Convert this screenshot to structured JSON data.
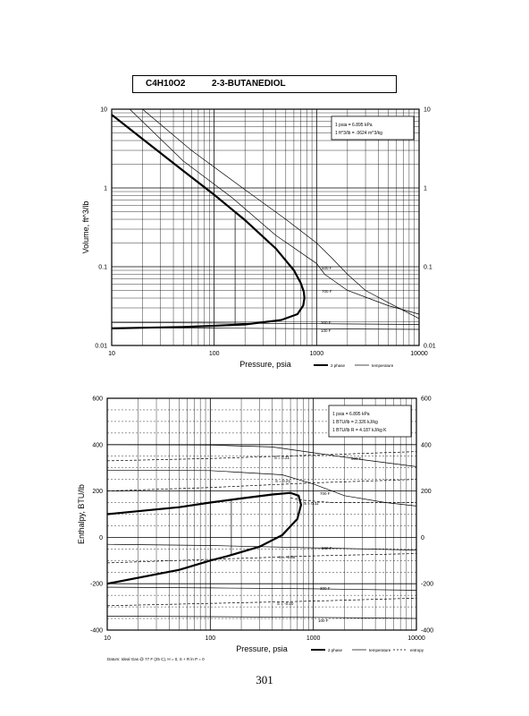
{
  "header": {
    "formula": "C4H10O2",
    "name": "2-3-BUTANEDIOL"
  },
  "page_number": "301",
  "colors": {
    "ink": "#000000",
    "background": "#ffffff"
  },
  "chart_data": [
    {
      "type": "line",
      "xscale": "log",
      "yscale": "log",
      "xlabel": "Pressure,  psia",
      "ylabel": "Volume, ft^3/lb",
      "xlim": [
        10,
        10000
      ],
      "ylim": [
        0.01,
        10
      ],
      "grid": true,
      "xticks": [
        10,
        100,
        1000,
        10000
      ],
      "xtick_labels": [
        "10",
        "100",
        "1000",
        "10000"
      ],
      "yticks": [
        0.01,
        0.1,
        1,
        10
      ],
      "ytick_labels": [
        "0.01",
        "0.1",
        "1",
        "10"
      ],
      "conversion_box": [
        "1 psia  =  6.895 kPa",
        "1 ft^3/lb  =  .0624 m^3/kg"
      ],
      "legend": [
        "2 phase",
        "temperature"
      ],
      "legend_position": "bottom-right",
      "series": [
        {
          "name": "2 phase",
          "role": "saturation",
          "x": [
            10,
            20,
            50,
            100,
            200,
            400,
            600,
            700,
            750,
            760,
            740,
            650,
            450,
            200,
            100,
            50,
            20,
            10
          ],
          "y": [
            8.5,
            4.2,
            1.65,
            0.82,
            0.39,
            0.17,
            0.09,
            0.062,
            0.048,
            0.04,
            0.032,
            0.025,
            0.021,
            0.0185,
            0.0178,
            0.0172,
            0.0168,
            0.0165
          ]
        },
        {
          "role": "tie-line",
          "x": [
            160,
            160
          ],
          "y": [
            0.5,
            0.0185
          ]
        },
        {
          "label": "500 F",
          "role": "isotherm",
          "x": [
            15,
            50,
            150,
            400,
            1000,
            1200,
            2000,
            5000,
            10000
          ],
          "y": [
            10,
            2.2,
            0.75,
            0.25,
            0.11,
            0.08,
            0.05,
            0.032,
            0.025
          ]
        },
        {
          "label": "700 F",
          "role": "isotherm",
          "x": [
            20,
            60,
            200,
            500,
            1000,
            1400,
            2000,
            3000,
            5000,
            10000
          ],
          "y": [
            10,
            3.0,
            0.95,
            0.4,
            0.2,
            0.13,
            0.08,
            0.05,
            0.035,
            0.022
          ]
        },
        {
          "label": "300 F",
          "role": "isotherm",
          "x": [
            10,
            100,
            1000,
            10000
          ],
          "y": [
            0.0196,
            0.0193,
            0.0189,
            0.0185
          ]
        },
        {
          "label": "100 F",
          "role": "isotherm",
          "x": [
            10,
            100,
            1000,
            10000
          ],
          "y": [
            0.0168,
            0.0166,
            0.0163,
            0.016
          ]
        }
      ],
      "annotations": [
        "500 F",
        "700 F",
        "300 F",
        "100 F"
      ]
    },
    {
      "type": "line",
      "xscale": "log",
      "xlabel": "Pressure,  psia",
      "ylabel": "Enthalpy, BTU/lb",
      "xlim": [
        10,
        10000
      ],
      "ylim": [
        -400,
        600
      ],
      "grid": true,
      "xticks": [
        10,
        100,
        1000,
        10000
      ],
      "xtick_labels": [
        "10",
        "100",
        "1000",
        "10000"
      ],
      "yticks": [
        -400,
        -200,
        0,
        200,
        400,
        600
      ],
      "ytick_labels": [
        "-400",
        "-200",
        "0",
        "200",
        "400",
        "600"
      ],
      "conversion_box": [
        "1 psia  =  6.895 kPa",
        "1 BTU/lb  =  2.326 kJ/kg",
        "1 BTU/lb R  =  4.187 kJ/kg K"
      ],
      "legend": [
        "2 phase",
        "temperature",
        "entropy"
      ],
      "legend_position": "bottom-right",
      "datum_note": "Datum: Ideal Gas @ 77 F (25 C),  H = 0,  S + R ln P = 0",
      "series": [
        {
          "name": "2 phase",
          "role": "saturation",
          "x": [
            10,
            50,
            100,
            200,
            400,
            600,
            720,
            760,
            700,
            500,
            300,
            150,
            100,
            50,
            10
          ],
          "y": [
            100,
            130,
            150,
            168,
            185,
            192,
            180,
            140,
            80,
            10,
            -40,
            -80,
            -100,
            -140,
            -200
          ]
        },
        {
          "role": "tie-line",
          "x": [
            160,
            160
          ],
          "y": [
            165,
            -78
          ]
        },
        {
          "label": "500 F",
          "role": "isotherm",
          "x": [
            10,
            100,
            400,
            1000,
            3000,
            10000
          ],
          "y": [
            400,
            398,
            390,
            365,
            335,
            305
          ]
        },
        {
          "label": "700 F",
          "role": "isotherm",
          "x": [
            10,
            100,
            500,
            1000,
            2000,
            5000,
            10000
          ],
          "y": [
            290,
            288,
            270,
            230,
            180,
            150,
            135
          ]
        },
        {
          "label": "500 F",
          "role": "isotherm",
          "x": [
            10,
            100,
            1000,
            10000
          ],
          "y": [
            -30,
            -35,
            -45,
            -55
          ]
        },
        {
          "label": "300 F",
          "role": "isotherm",
          "x": [
            10,
            100,
            1000,
            10000
          ],
          "y": [
            -215,
            -218,
            -222,
            -228
          ]
        },
        {
          "label": "100 F",
          "role": "isotherm",
          "x": [
            10,
            100,
            1000,
            10000
          ],
          "y": [
            -340,
            -342,
            -345,
            -350
          ]
        },
        {
          "label": "S = 0.31",
          "role": "isentrope",
          "x": [
            10,
            100,
            1000,
            10000
          ],
          "y": [
            330,
            340,
            355,
            370
          ]
        },
        {
          "label": "S = 0.21",
          "role": "isentrope",
          "x": [
            10,
            100,
            1000,
            10000
          ],
          "y": [
            200,
            215,
            235,
            250
          ]
        },
        {
          "label": "S = 0.11",
          "role": "isentrope",
          "x": [
            600,
            800,
            1500,
            10000
          ],
          "y": [
            170,
            160,
            150,
            150
          ]
        },
        {
          "label": "S = -0.08",
          "role": "isentrope",
          "x": [
            10,
            100,
            1000,
            10000
          ],
          "y": [
            -110,
            -95,
            -80,
            -70
          ]
        },
        {
          "label": "S = -0.20",
          "role": "isentrope",
          "x": [
            10,
            100,
            1000,
            10000
          ],
          "y": [
            -295,
            -285,
            -275,
            -262
          ]
        }
      ],
      "annotations": [
        "500 F",
        "700 F",
        "500 F",
        "300 F",
        "100 F",
        "S = 0.31",
        "S = 0.21",
        "S = 0.11",
        "S = -0.08",
        "S = -0.20"
      ]
    }
  ]
}
